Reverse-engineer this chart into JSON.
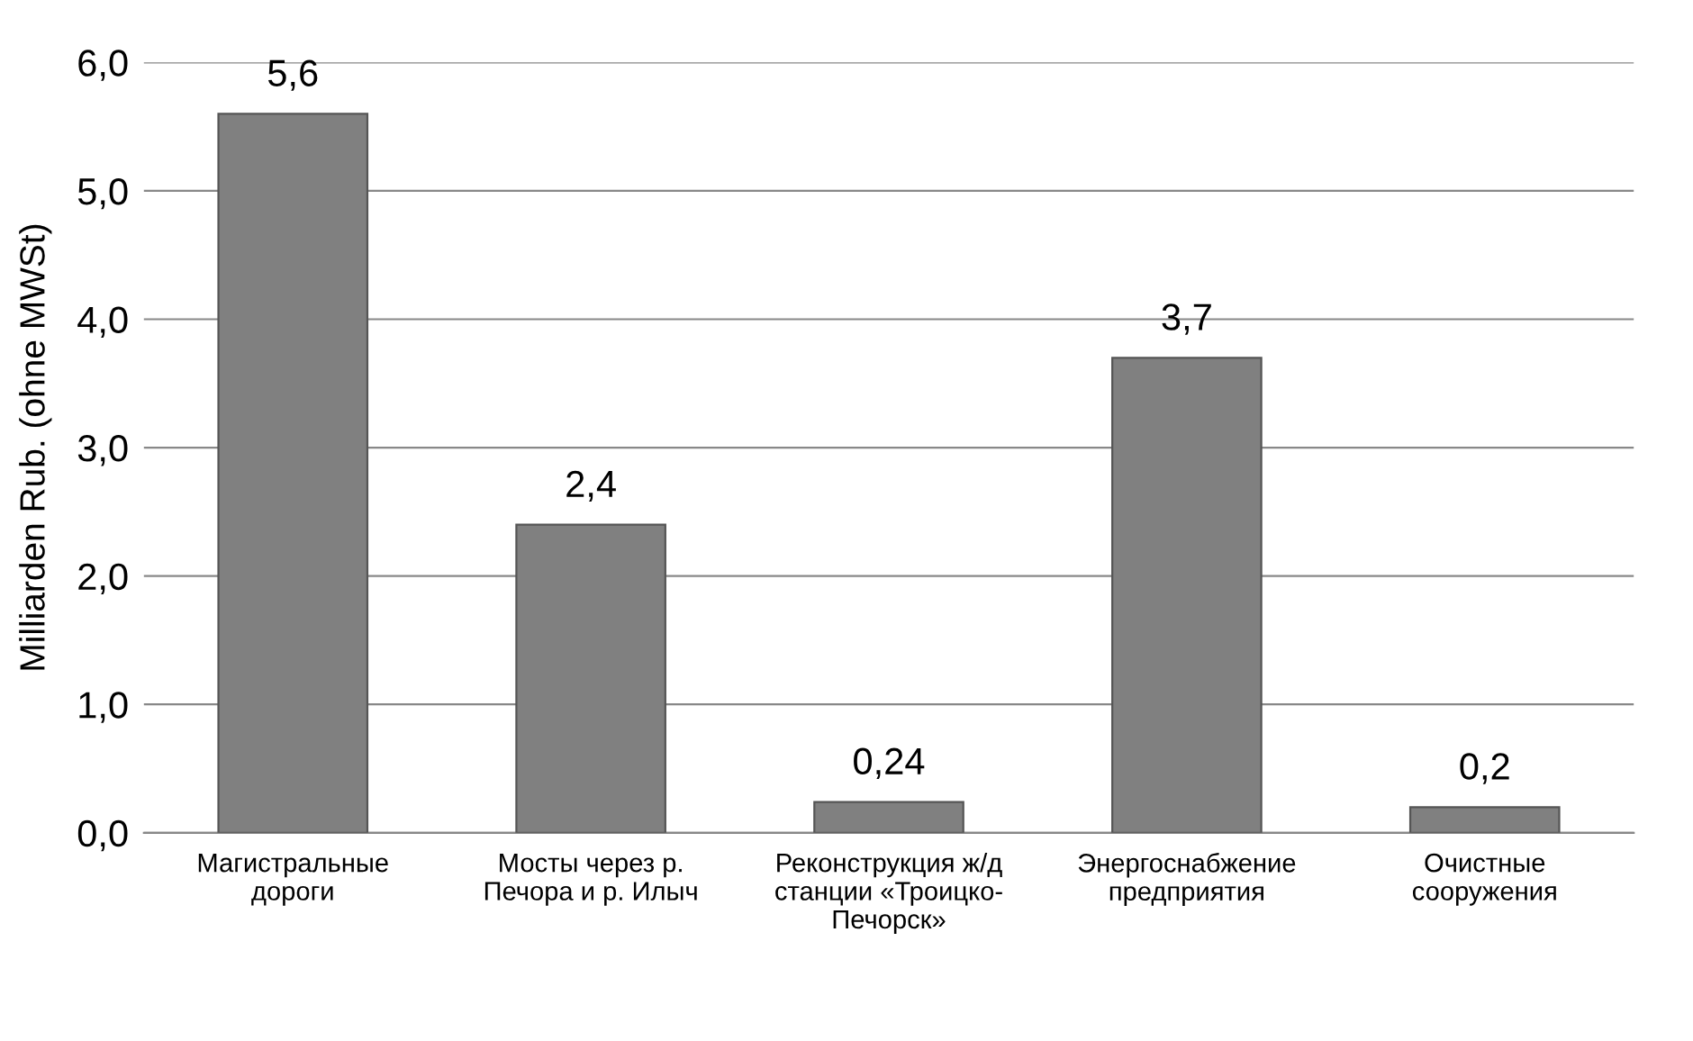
{
  "chart_data": {
    "type": "bar",
    "ylabel": "Milliarden Rub. (ohne MWSt)",
    "categories": [
      "Магистральные\nдороги",
      "Мосты через р.\nПечора и р. Илыч",
      "Реконструкция ж/д\nстанции «Троицко-\nПечорск»",
      "Энергоснабжение\nпредприятия",
      "Очистные\nсооружения"
    ],
    "values": [
      5.6,
      2.4,
      0.24,
      3.7,
      0.2
    ],
    "value_labels": [
      "5,6",
      "2,4",
      "0,24",
      "3,7",
      "0,2"
    ],
    "color": "#808080",
    "ylim": [
      0,
      6
    ],
    "yticks": [
      {
        "value": 0,
        "label": "0,0"
      },
      {
        "value": 1,
        "label": "1,0"
      },
      {
        "value": 2,
        "label": "2,0"
      },
      {
        "value": 3,
        "label": "3,0"
      },
      {
        "value": 4,
        "label": "4,0"
      },
      {
        "value": 5,
        "label": "5,0"
      },
      {
        "value": 6,
        "label": "6,0"
      }
    ],
    "grid": "y"
  }
}
